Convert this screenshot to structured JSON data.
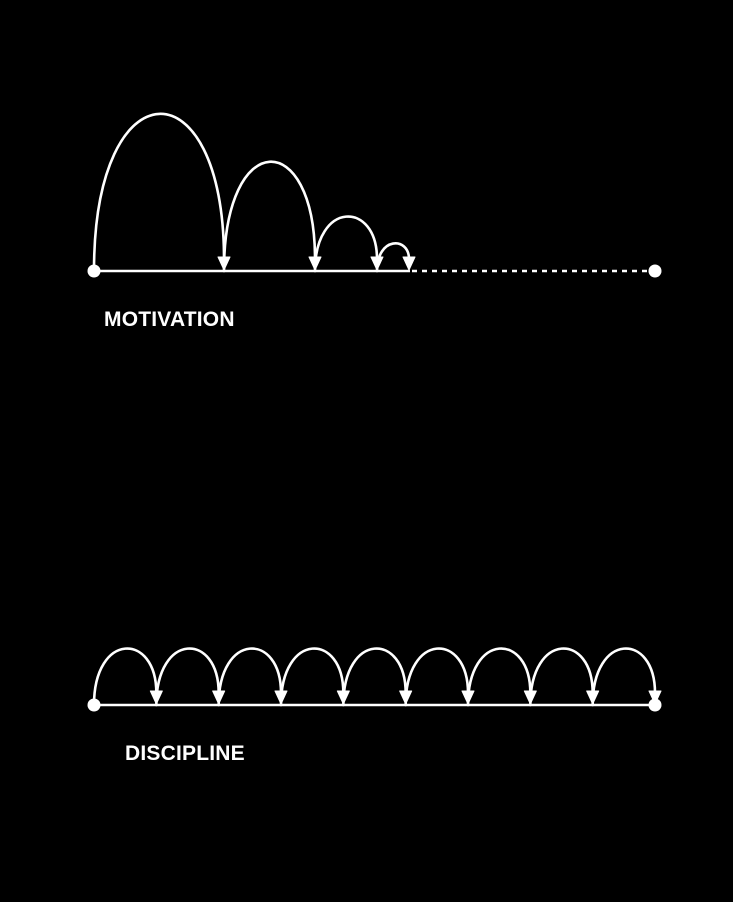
{
  "diagrams": [
    {
      "id": "motivation",
      "label": "MOTIVATION",
      "color": "#ffffff",
      "background": "#000000"
    },
    {
      "id": "discipline",
      "label": "DISCIPLINE",
      "color": "#ffffff",
      "background": "#000000"
    }
  ]
}
